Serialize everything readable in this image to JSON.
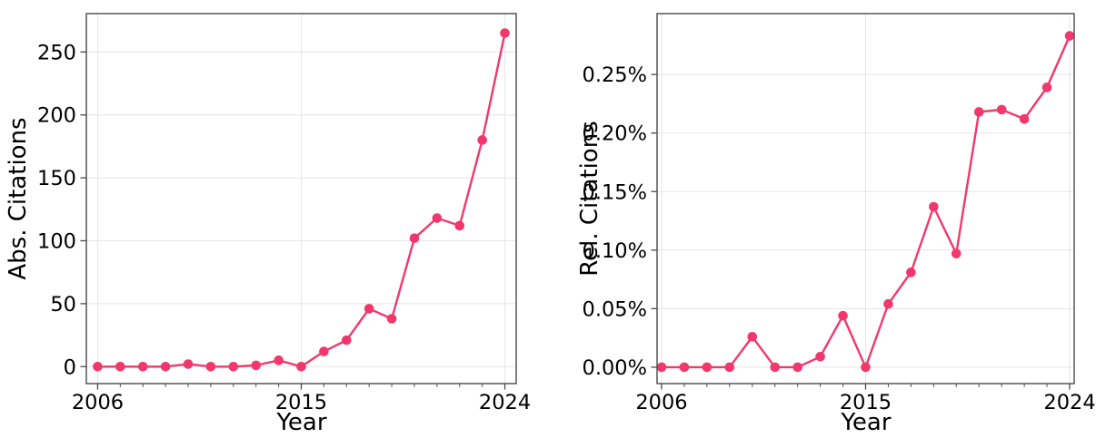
{
  "figure": {
    "background": "#ffffff",
    "accent_color": "#F1386C",
    "grid_color": "#e5e5e5",
    "spine_color": "#4a4a4a",
    "text_color": "#000000"
  },
  "chart_data": [
    {
      "name": "absolute-citations",
      "type": "line",
      "title": "",
      "xlabel": "Year",
      "ylabel": "Abs. Citations",
      "x": [
        2006,
        2007,
        2008,
        2009,
        2010,
        2011,
        2012,
        2013,
        2014,
        2015,
        2016,
        2017,
        2018,
        2019,
        2020,
        2021,
        2022,
        2023,
        2024
      ],
      "values": [
        0,
        0,
        0,
        0,
        2,
        0,
        0,
        1,
        5,
        0,
        12,
        21,
        46,
        38,
        102,
        118,
        112,
        180,
        265
      ],
      "xlim": [
        2005.5,
        2024.5
      ],
      "ylim": [
        -13.5,
        280.5
      ],
      "xtick_values": [
        2006,
        2015,
        2024
      ],
      "xtick_labels": [
        "2006",
        "2015",
        "2024"
      ],
      "ytick_values": [
        0,
        50,
        100,
        150,
        200,
        250
      ],
      "ytick_labels": [
        "0",
        "50",
        "100",
        "150",
        "200",
        "250"
      ],
      "grid": true,
      "legend": null,
      "marker": "circle",
      "line_color": "#F1386C"
    },
    {
      "name": "relative-citations",
      "type": "line",
      "title": "",
      "xlabel": "Year",
      "ylabel": "Rel. Citations",
      "x": [
        2006,
        2007,
        2008,
        2009,
        2010,
        2011,
        2012,
        2013,
        2014,
        2015,
        2016,
        2017,
        2018,
        2019,
        2020,
        2021,
        2022,
        2023,
        2024
      ],
      "values": [
        0.0,
        0.0,
        0.0,
        0.0,
        0.026,
        0.0,
        0.0,
        0.009,
        0.044,
        0.0,
        0.054,
        0.081,
        0.137,
        0.097,
        0.218,
        0.22,
        0.212,
        0.239,
        0.283
      ],
      "xlim": [
        2005.8,
        2024.2
      ],
      "ylim": [
        -0.014,
        0.302
      ],
      "xtick_values": [
        2006,
        2015,
        2024
      ],
      "xtick_labels": [
        "2006",
        "2015",
        "2024"
      ],
      "ytick_values": [
        0.0,
        0.05,
        0.1,
        0.15,
        0.2,
        0.25
      ],
      "ytick_labels": [
        "0.00%",
        "0.05%",
        "0.10%",
        "0.15%",
        "0.20%",
        "0.25%"
      ],
      "grid": true,
      "legend": null,
      "marker": "circle",
      "line_color": "#F1386C"
    }
  ]
}
